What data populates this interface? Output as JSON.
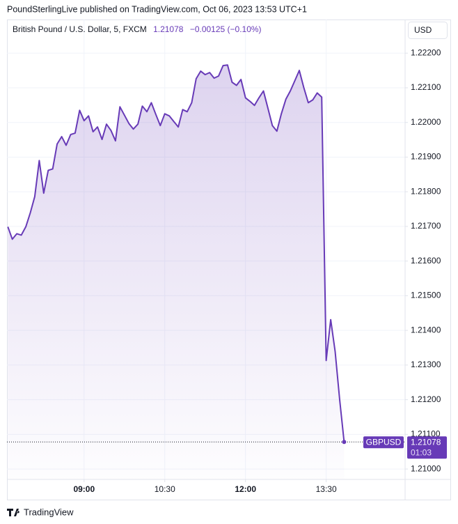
{
  "publisher_note": "PoundSterlingLive published on TradingView.com, Oct 06, 2023 13:53 UTC+1",
  "change": "−0.00125 (−0.10%)",
  "currency": "USD",
  "countdown": "01:03",
  "brand": "TradingView",
  "chart_data": {
    "type": "line",
    "title": "British Pound / U.S. Dollar, 5, FXCM",
    "x": [
      455,
      460,
      465,
      470,
      475,
      480,
      485,
      490,
      495,
      500,
      505,
      510,
      515,
      520,
      525,
      530,
      535,
      540,
      545,
      550,
      555,
      560,
      565,
      570,
      575,
      580,
      585,
      590,
      595,
      600,
      605,
      610,
      615,
      620,
      625,
      630,
      635,
      640,
      645,
      650,
      655,
      660,
      665,
      670,
      675,
      680,
      685,
      690,
      695,
      700,
      705,
      710,
      715,
      720,
      725,
      730,
      735,
      740,
      745,
      750,
      755,
      760,
      765,
      770,
      775,
      780,
      785,
      790,
      795,
      800,
      805,
      810,
      815,
      820,
      825,
      830
    ],
    "series": [
      {
        "name": "GBPUSD",
        "color": "#673ab7",
        "values": [
          1.21699,
          1.21663,
          1.21679,
          1.21675,
          1.21699,
          1.21739,
          1.21786,
          1.2189,
          1.21796,
          1.21862,
          1.21866,
          1.21938,
          1.21959,
          1.21934,
          1.21965,
          1.21969,
          1.22035,
          1.22005,
          1.22019,
          1.21973,
          1.21987,
          1.21951,
          1.21995,
          1.21977,
          1.21947,
          1.22045,
          1.22021,
          1.21997,
          1.21981,
          1.21995,
          1.22047,
          1.22031,
          1.22057,
          1.22023,
          1.21991,
          1.22025,
          1.22019,
          1.22003,
          1.21987,
          1.22037,
          1.22031,
          1.22057,
          1.22126,
          1.22148,
          1.22138,
          1.22144,
          1.22128,
          1.22134,
          1.22164,
          1.22166,
          1.22116,
          1.22107,
          1.22124,
          1.22071,
          1.22061,
          1.22049,
          1.22071,
          1.22091,
          1.22041,
          1.21991,
          1.21975,
          1.22025,
          1.22067,
          1.22091,
          1.2212,
          1.2215,
          1.22101,
          1.22057,
          1.22065,
          1.22085,
          1.22073,
          1.21313,
          1.21431,
          1.21339,
          1.212,
          1.21078
        ]
      }
    ],
    "xlim": [
      454,
      898
    ],
    "xticks": [
      {
        "value": 540,
        "label": "09:00"
      },
      {
        "value": 630,
        "label": "10:30"
      },
      {
        "value": 720,
        "label": "12:00"
      },
      {
        "value": 810,
        "label": "13:30"
      }
    ],
    "ylim": [
      1.2097,
      1.22297
    ],
    "yticks": [
      {
        "value": 1.21,
        "label": "1.21000"
      },
      {
        "value": 1.211,
        "label": "1.21100"
      },
      {
        "value": 1.212,
        "label": "1.21200"
      },
      {
        "value": 1.213,
        "label": "1.21300"
      },
      {
        "value": 1.214,
        "label": "1.21400"
      },
      {
        "value": 1.215,
        "label": "1.21500"
      },
      {
        "value": 1.216,
        "label": "1.21600"
      },
      {
        "value": 1.217,
        "label": "1.21700"
      },
      {
        "value": 1.218,
        "label": "1.21800"
      },
      {
        "value": 1.219,
        "label": "1.21900"
      },
      {
        "value": 1.22,
        "label": "1.22000"
      },
      {
        "value": 1.221,
        "label": "1.22100"
      },
      {
        "value": 1.222,
        "label": "1.22200"
      }
    ],
    "grid": true
  }
}
